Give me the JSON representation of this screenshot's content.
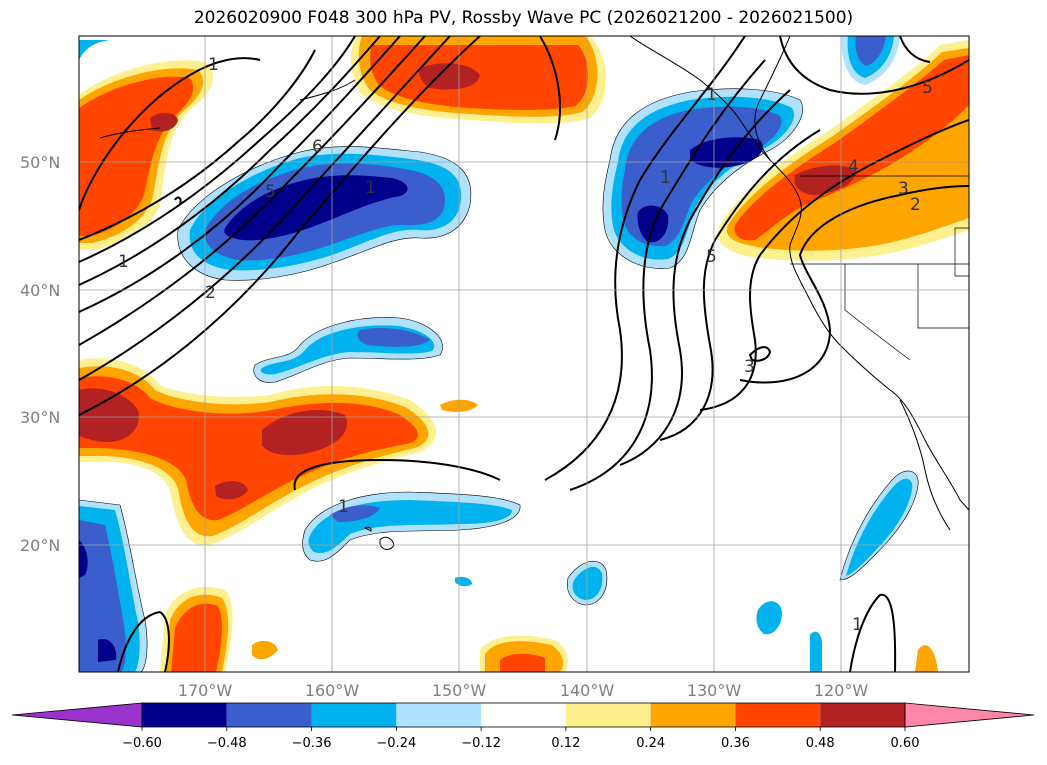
{
  "title": "2026020900 F048 300 hPa PV, Rossby Wave PC (2026021200 - 2026021500)",
  "lat_labels": [
    "50°N",
    "40°N",
    "30°N",
    "20°N"
  ],
  "lon_labels": [
    "170°W",
    "160°W",
    "150°W",
    "140°W",
    "130°W",
    "120°W"
  ],
  "colorbar": {
    "ticks": [
      "−0.60",
      "−0.48",
      "−0.36",
      "−0.24",
      "−0.12",
      "0.12",
      "0.24",
      "0.36",
      "0.48",
      "0.60"
    ],
    "colors": [
      "#9a32cd",
      "#00008b",
      "#3a5fcd",
      "#00b2ee",
      "#b0e2ff",
      "#ffffff",
      "#fff08f",
      "#ffa500",
      "#ff4500",
      "#b22222",
      "#ff86a8"
    ]
  },
  "contour_labels": [
    "1",
    "6",
    "5",
    "1",
    "2",
    "1",
    "1",
    "1",
    "5",
    "3",
    "4",
    "3",
    "2",
    "5",
    "1",
    "1"
  ]
}
